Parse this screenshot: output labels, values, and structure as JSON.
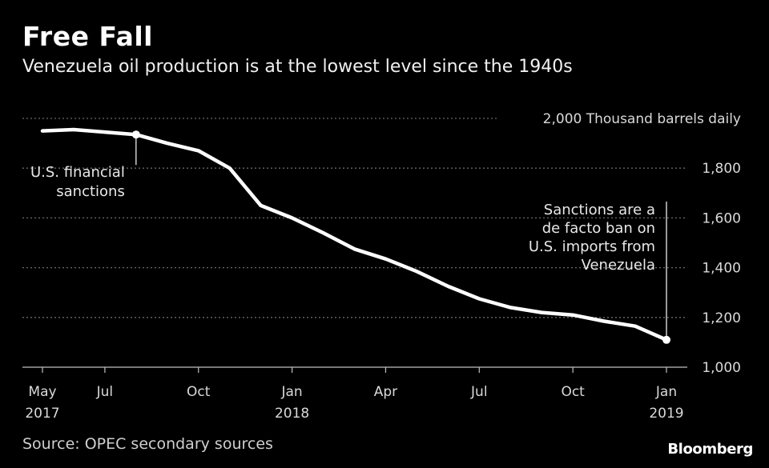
{
  "title": "Free Fall",
  "subtitle": "Venezuela oil production is at the lowest level since the 1940s",
  "source": "Source: OPEC secondary sources",
  "brand": "Bloomberg",
  "colors": {
    "background": "#000000",
    "line": "#ffffff",
    "grid": "#6a6a6a",
    "text": "#ffffff",
    "muted": "#d9d9d9"
  },
  "chart_data": {
    "type": "line",
    "title": "Free Fall",
    "subtitle": "Venezuela oil production is at the lowest level since the 1940s",
    "ylabel": "Thousand barrels daily",
    "ylim": [
      1000,
      2000
    ],
    "yticks": [
      1000,
      1200,
      1400,
      1600,
      1800,
      2000
    ],
    "ytick_labels": [
      "1,000",
      "1,200",
      "1,400",
      "1,600",
      "1,800",
      "2,000 Thousand barrels daily"
    ],
    "xlim": [
      "2017-05",
      "2019-01"
    ],
    "xticks": [
      {
        "month": "2017-05",
        "label": "May",
        "sublabel": "2017"
      },
      {
        "month": "2017-07",
        "label": "Jul",
        "sublabel": ""
      },
      {
        "month": "2017-10",
        "label": "Oct",
        "sublabel": ""
      },
      {
        "month": "2018-01",
        "label": "Jan",
        "sublabel": "2018"
      },
      {
        "month": "2018-04",
        "label": "Apr",
        "sublabel": ""
      },
      {
        "month": "2018-07",
        "label": "Jul",
        "sublabel": ""
      },
      {
        "month": "2018-10",
        "label": "Oct",
        "sublabel": ""
      },
      {
        "month": "2019-01",
        "label": "Jan",
        "sublabel": "2019"
      }
    ],
    "grid": true,
    "series": [
      {
        "name": "Venezuela oil production",
        "x": [
          "2017-05",
          "2017-06",
          "2017-07",
          "2017-08",
          "2017-09",
          "2017-10",
          "2017-11",
          "2017-12",
          "2018-01",
          "2018-02",
          "2018-03",
          "2018-04",
          "2018-05",
          "2018-06",
          "2018-07",
          "2018-08",
          "2018-09",
          "2018-10",
          "2018-11",
          "2018-12",
          "2019-01"
        ],
        "values": [
          1950,
          1955,
          1945,
          1935,
          1900,
          1870,
          1800,
          1650,
          1600,
          1540,
          1475,
          1435,
          1385,
          1325,
          1275,
          1240,
          1220,
          1210,
          1185,
          1165,
          1110
        ]
      }
    ],
    "annotations": [
      {
        "month": "2017-08",
        "value": 1935,
        "lines": [
          "U.S. financial",
          "sanctions"
        ],
        "placement": "below-left"
      },
      {
        "month": "2019-01",
        "value": 1110,
        "lines": [
          "Sanctions are a",
          "de facto ban on",
          "U.S. imports from",
          "Venezuela"
        ],
        "placement": "above-left"
      }
    ]
  }
}
